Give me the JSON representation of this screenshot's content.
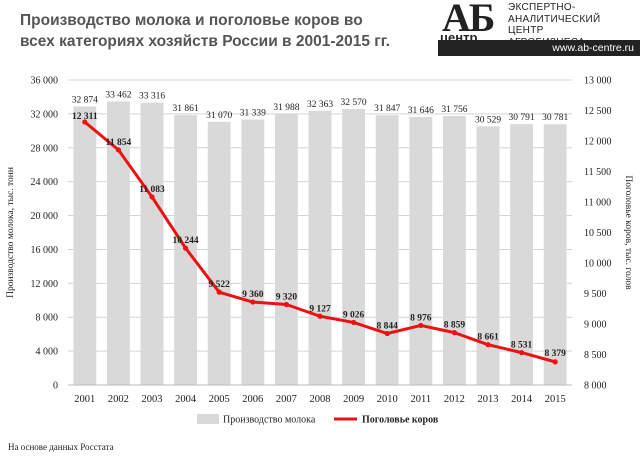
{
  "header": {
    "title_line1": "Производство молока и поголовье коров во",
    "title_line2": "всех категориях хозяйств России в 2001-2015 гг."
  },
  "logo": {
    "mark": "АБ",
    "centr": "центр",
    "line1": "ЭКСПЕРТНО-",
    "line2": "АНАЛИТИЧЕСКИЙ",
    "line3": "ЦЕНТР",
    "line4": "АГРОБИЗНЕСА",
    "url": "www.ab-centre.ru"
  },
  "source": "На основе данных Росстата",
  "chart_data": {
    "type": "bar+line",
    "categories": [
      "2001",
      "2002",
      "2003",
      "2004",
      "2005",
      "2006",
      "2007",
      "2008",
      "2009",
      "2010",
      "2011",
      "2012",
      "2013",
      "2014",
      "2015"
    ],
    "series": [
      {
        "name": "Производство молока",
        "type": "bar",
        "axis": "left",
        "color": "#d9d9d9",
        "values": [
          32874,
          33462,
          33316,
          31861,
          31070,
          31339,
          31988,
          32363,
          32570,
          31847,
          31646,
          31756,
          30529,
          30791,
          30781
        ],
        "labels": [
          "32 874",
          "33 462",
          "33 316",
          "31 861",
          "31 070",
          "31 339",
          "31 988",
          "32 363",
          "32 570",
          "31 847",
          "31 646",
          "31 756",
          "30 529",
          "30 791",
          "30 781"
        ]
      },
      {
        "name": "Поголовье коров",
        "type": "line",
        "axis": "right",
        "color": "#ee1111",
        "values": [
          12311,
          11854,
          11083,
          10244,
          9522,
          9360,
          9320,
          9127,
          9026,
          8844,
          8976,
          8859,
          8661,
          8531,
          8379
        ],
        "labels": [
          "12 311",
          "11 854",
          "11 083",
          "10 244",
          "9 522",
          "9 360",
          "9 320",
          "9 127",
          "9 026",
          "8 844",
          "8 976",
          "8 859",
          "8 661",
          "8 531",
          "8 379"
        ]
      }
    ],
    "y_left": {
      "label": "Производство молока, тыс. тонн",
      "range": [
        0,
        36000
      ],
      "ticks": [
        0,
        4000,
        8000,
        12000,
        16000,
        20000,
        24000,
        28000,
        32000,
        36000
      ],
      "tick_labels": [
        "0",
        "4 000",
        "8 000",
        "12 000",
        "16 000",
        "20 000",
        "24 000",
        "28 000",
        "32 000",
        "36 000"
      ]
    },
    "y_right": {
      "label": "Поголовье коров, тыс. голов",
      "range": [
        8000,
        13000
      ],
      "ticks": [
        8000,
        8500,
        9000,
        9500,
        10000,
        10500,
        11000,
        11500,
        12000,
        12500,
        13000
      ],
      "tick_labels": [
        "8 000",
        "8 500",
        "9 000",
        "9 500",
        "10 000",
        "10 500",
        "11 000",
        "11 500",
        "12 000",
        "12 500",
        "13 000"
      ]
    },
    "grid": true,
    "legend": "bottom"
  }
}
